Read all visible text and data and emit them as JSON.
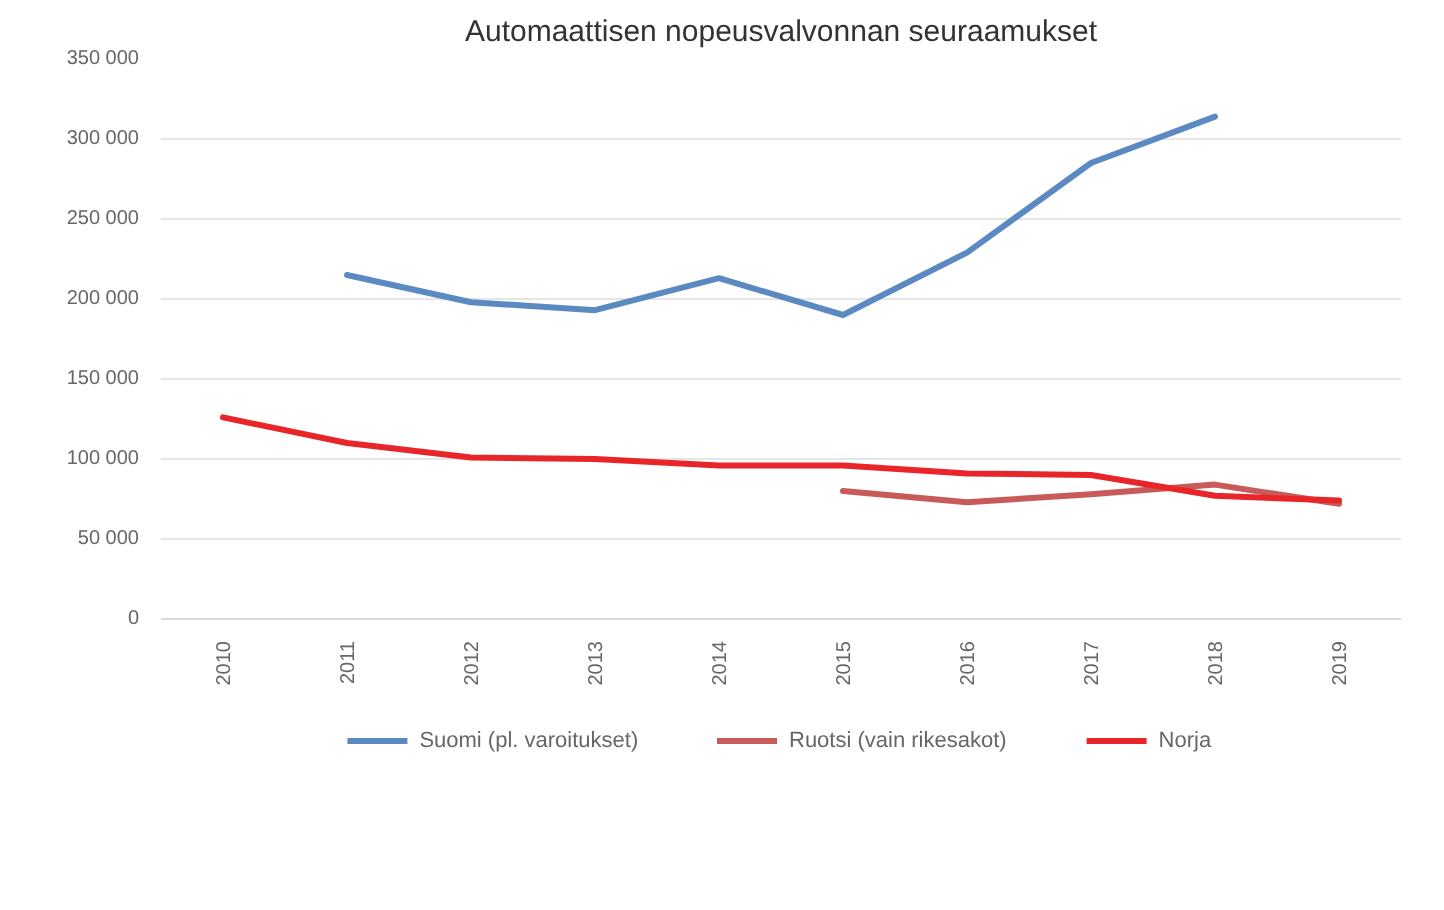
{
  "chart_data": {
    "type": "line",
    "title": "Automaattisen nopeusvalvonnan seuraamukset",
    "categories": [
      "2010",
      "2011",
      "2012",
      "2013",
      "2014",
      "2015",
      "2016",
      "2017",
      "2018",
      "2019"
    ],
    "series": [
      {
        "name": "Suomi (pl. varoitukset)",
        "color": "#5b8ac2",
        "values": [
          null,
          215000,
          198000,
          193000,
          213000,
          190000,
          229000,
          285000,
          314000,
          null
        ]
      },
      {
        "name": "Ruotsi (vain rikesakot)",
        "color": "#c85a5a",
        "values": [
          null,
          null,
          null,
          null,
          null,
          80000,
          73000,
          78000,
          84000,
          72000
        ]
      },
      {
        "name": "Norja",
        "color": "#e8262a",
        "values": [
          126000,
          110000,
          101000,
          100000,
          96000,
          96000,
          91000,
          90000,
          77000,
          74000
        ]
      }
    ],
    "ylim": [
      0,
      350000
    ],
    "yticks": [
      {
        "value": 0,
        "label": "0"
      },
      {
        "value": 50000,
        "label": "50 000"
      },
      {
        "value": 100000,
        "label": "100 000"
      },
      {
        "value": 150000,
        "label": "150 000"
      },
      {
        "value": 200000,
        "label": "200 000"
      },
      {
        "value": 250000,
        "label": "250 000"
      },
      {
        "value": 300000,
        "label": "300 000"
      },
      {
        "value": 350000,
        "label": "350 000"
      }
    ],
    "grid": "y",
    "legend": "bottom"
  }
}
